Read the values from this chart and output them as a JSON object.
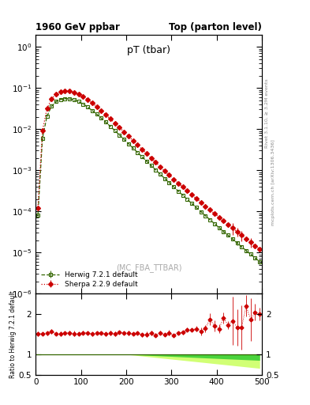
{
  "title_left": "1960 GeV ppbar",
  "title_right": "Top (parton level)",
  "main_title": "pT (tbar)",
  "watermark": "(MC_FBA_TTBAR)",
  "right_label_top": "Rivet 3.1.10, ≥ 3.2M events",
  "right_label_bottom": "mcplots.cern.ch [arXiv:1306.3436]",
  "ylabel_ratio": "Ratio to Herwig 7.2.1 default",
  "legend_herwig": "Herwig 7.2.1 default",
  "legend_sherpa": "Sherpa 2.2.9 default",
  "xlim": [
    0,
    500
  ],
  "ylim_main": [
    1e-06,
    2.0
  ],
  "ylim_ratio": [
    0.5,
    2.5
  ],
  "ratio_yticks": [
    0.5,
    1.0,
    2.0
  ],
  "herwig_color": "#336600",
  "sherpa_color": "#cc0000",
  "background_color": "#ffffff",
  "band_inner_color": "#33cc33",
  "band_outer_color": "#ccff66"
}
